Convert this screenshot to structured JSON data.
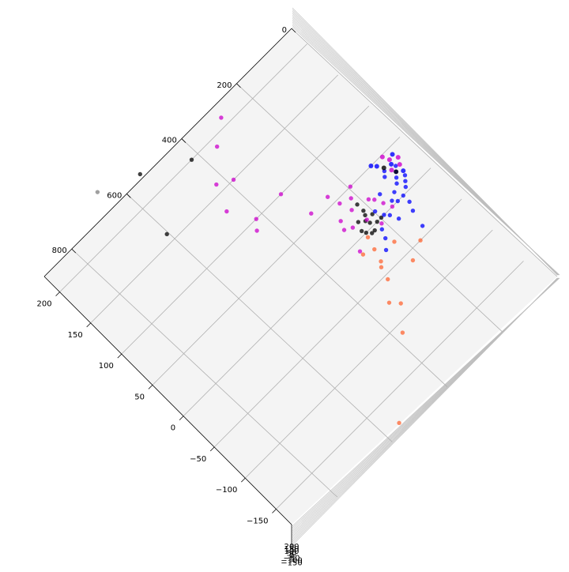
{
  "chart_data": {
    "type": "scatter",
    "title": "",
    "xlabel": "",
    "ylabel": "",
    "zlabel": "",
    "projection": "3d",
    "grid": true,
    "legend": "none",
    "pane_color": "#f4f4f4",
    "x_ticks": [
      0,
      200,
      400,
      600,
      800
    ],
    "y_ticks": [
      200,
      150,
      100,
      50,
      0,
      -50,
      -100,
      -150
    ],
    "z_ticks": [
      "200",
      "150",
      "100",
      "50",
      "0",
      "−50",
      "−100",
      "−150"
    ],
    "xlim": [
      0,
      900
    ],
    "ylim": [
      -175,
      225
    ],
    "series": [
      {
        "color": "#000000",
        "points": [
          [
            420,
            200
          ],
          [
            540,
            230
          ],
          [
            600,
            160
          ],
          [
            180,
            0
          ],
          [
            210,
            5
          ],
          [
            235,
            0
          ],
          [
            215,
            10
          ],
          [
            200,
            20
          ],
          [
            225,
            -5
          ],
          [
            205,
            15
          ],
          [
            240,
            5
          ],
          [
            195,
            0
          ],
          [
            230,
            15
          ],
          [
            215,
            -5
          ],
          [
            200,
            30
          ],
          [
            190,
            10
          ]
        ]
      },
      {
        "color": "#808080",
        "points": [
          [
            650,
            250
          ]
        ]
      },
      {
        "color": "#0000ff",
        "points": [
          [
            80,
            20
          ],
          [
            70,
            25
          ],
          [
            100,
            30
          ],
          [
            90,
            15
          ],
          [
            110,
            10
          ],
          [
            120,
            0
          ],
          [
            130,
            5
          ],
          [
            90,
            35
          ],
          [
            140,
            20
          ],
          [
            150,
            -15
          ],
          [
            160,
            -5
          ],
          [
            170,
            0
          ],
          [
            180,
            10
          ],
          [
            200,
            -10
          ],
          [
            210,
            -20
          ],
          [
            230,
            -30
          ],
          [
            120,
            -40
          ],
          [
            110,
            -20
          ],
          [
            60,
            30
          ],
          [
            60,
            15
          ],
          [
            70,
            10
          ],
          [
            80,
            5
          ],
          [
            100,
            -10
          ],
          [
            100,
            0
          ]
        ]
      },
      {
        "color": "#cc00cc",
        "points": [
          [
            300,
            60
          ],
          [
            430,
            90
          ],
          [
            410,
            100
          ],
          [
            450,
            130
          ],
          [
            290,
            210
          ],
          [
            380,
            150
          ],
          [
            420,
            160
          ],
          [
            320,
            100
          ],
          [
            350,
            190
          ],
          [
            280,
            -10
          ],
          [
            200,
            40
          ],
          [
            240,
            60
          ],
          [
            180,
            50
          ],
          [
            220,
            30
          ],
          [
            160,
            20
          ],
          [
            260,
            30
          ],
          [
            150,
            10
          ],
          [
            170,
            25
          ],
          [
            190,
            -5
          ],
          [
            210,
            10
          ],
          [
            230,
            45
          ],
          [
            140,
            0
          ],
          [
            250,
            15
          ],
          [
            270,
            20
          ]
        ]
      },
      {
        "color": "#ff6633",
        "points": [
          [
            250,
            -20
          ],
          [
            260,
            -35
          ],
          [
            200,
            -30
          ],
          [
            320,
            -75
          ],
          [
            300,
            -85
          ],
          [
            350,
            -110
          ],
          [
            520,
            -180
          ],
          [
            240,
            -5
          ],
          [
            270,
            -40
          ],
          [
            280,
            -15
          ],
          [
            150,
            -50
          ],
          [
            200,
            -60
          ],
          [
            280,
            -55
          ]
        ]
      }
    ]
  }
}
